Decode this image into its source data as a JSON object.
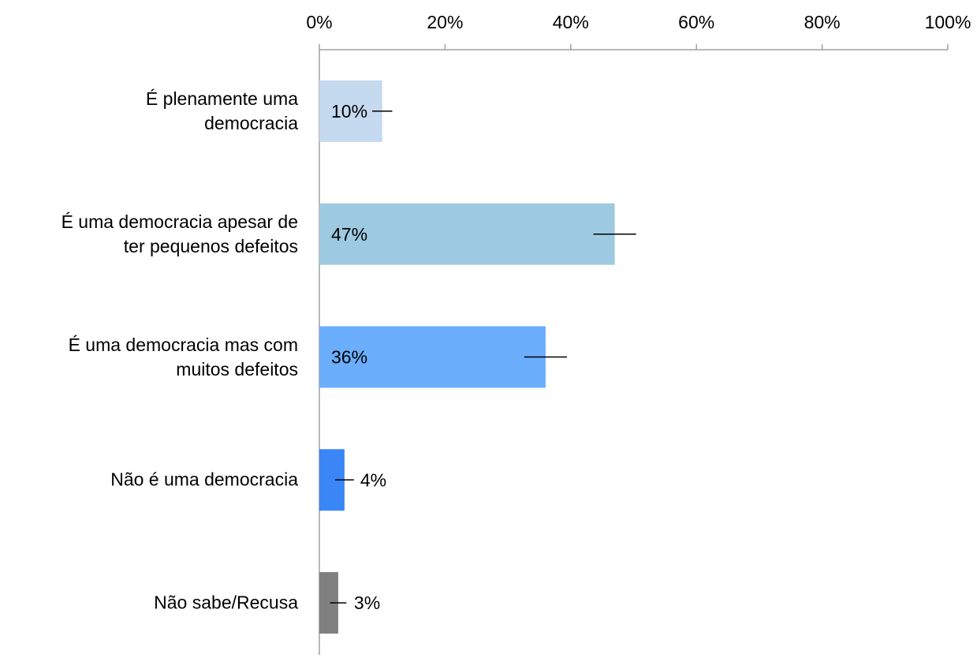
{
  "chart_data": {
    "type": "bar",
    "orientation": "horizontal",
    "categories": [
      "É plenamente uma\ndemocracia",
      "É uma democracia apesar de\nter pequenos defeitos",
      "É uma democracia mas com\nmuitos defeitos",
      "Não é uma democracia",
      "Não sabe/Recusa"
    ],
    "values": [
      10,
      47,
      36,
      4,
      3
    ],
    "value_labels": [
      "10%",
      "47%",
      "36%",
      "4%",
      "3%"
    ],
    "errors": [
      1.6,
      3.4,
      3.4,
      1.5,
      1.3
    ],
    "colors": [
      "#c5d9ef",
      "#9ecae1",
      "#6aaefc",
      "#3a86f7",
      "#808080"
    ],
    "xlim": [
      0,
      100
    ],
    "xticks": [
      {
        "value": 0,
        "label": "0%"
      },
      {
        "value": 20,
        "label": "20%"
      },
      {
        "value": 40,
        "label": "40%"
      },
      {
        "value": 60,
        "label": "60%"
      },
      {
        "value": 80,
        "label": "80%"
      },
      {
        "value": 100,
        "label": "100%"
      }
    ]
  }
}
